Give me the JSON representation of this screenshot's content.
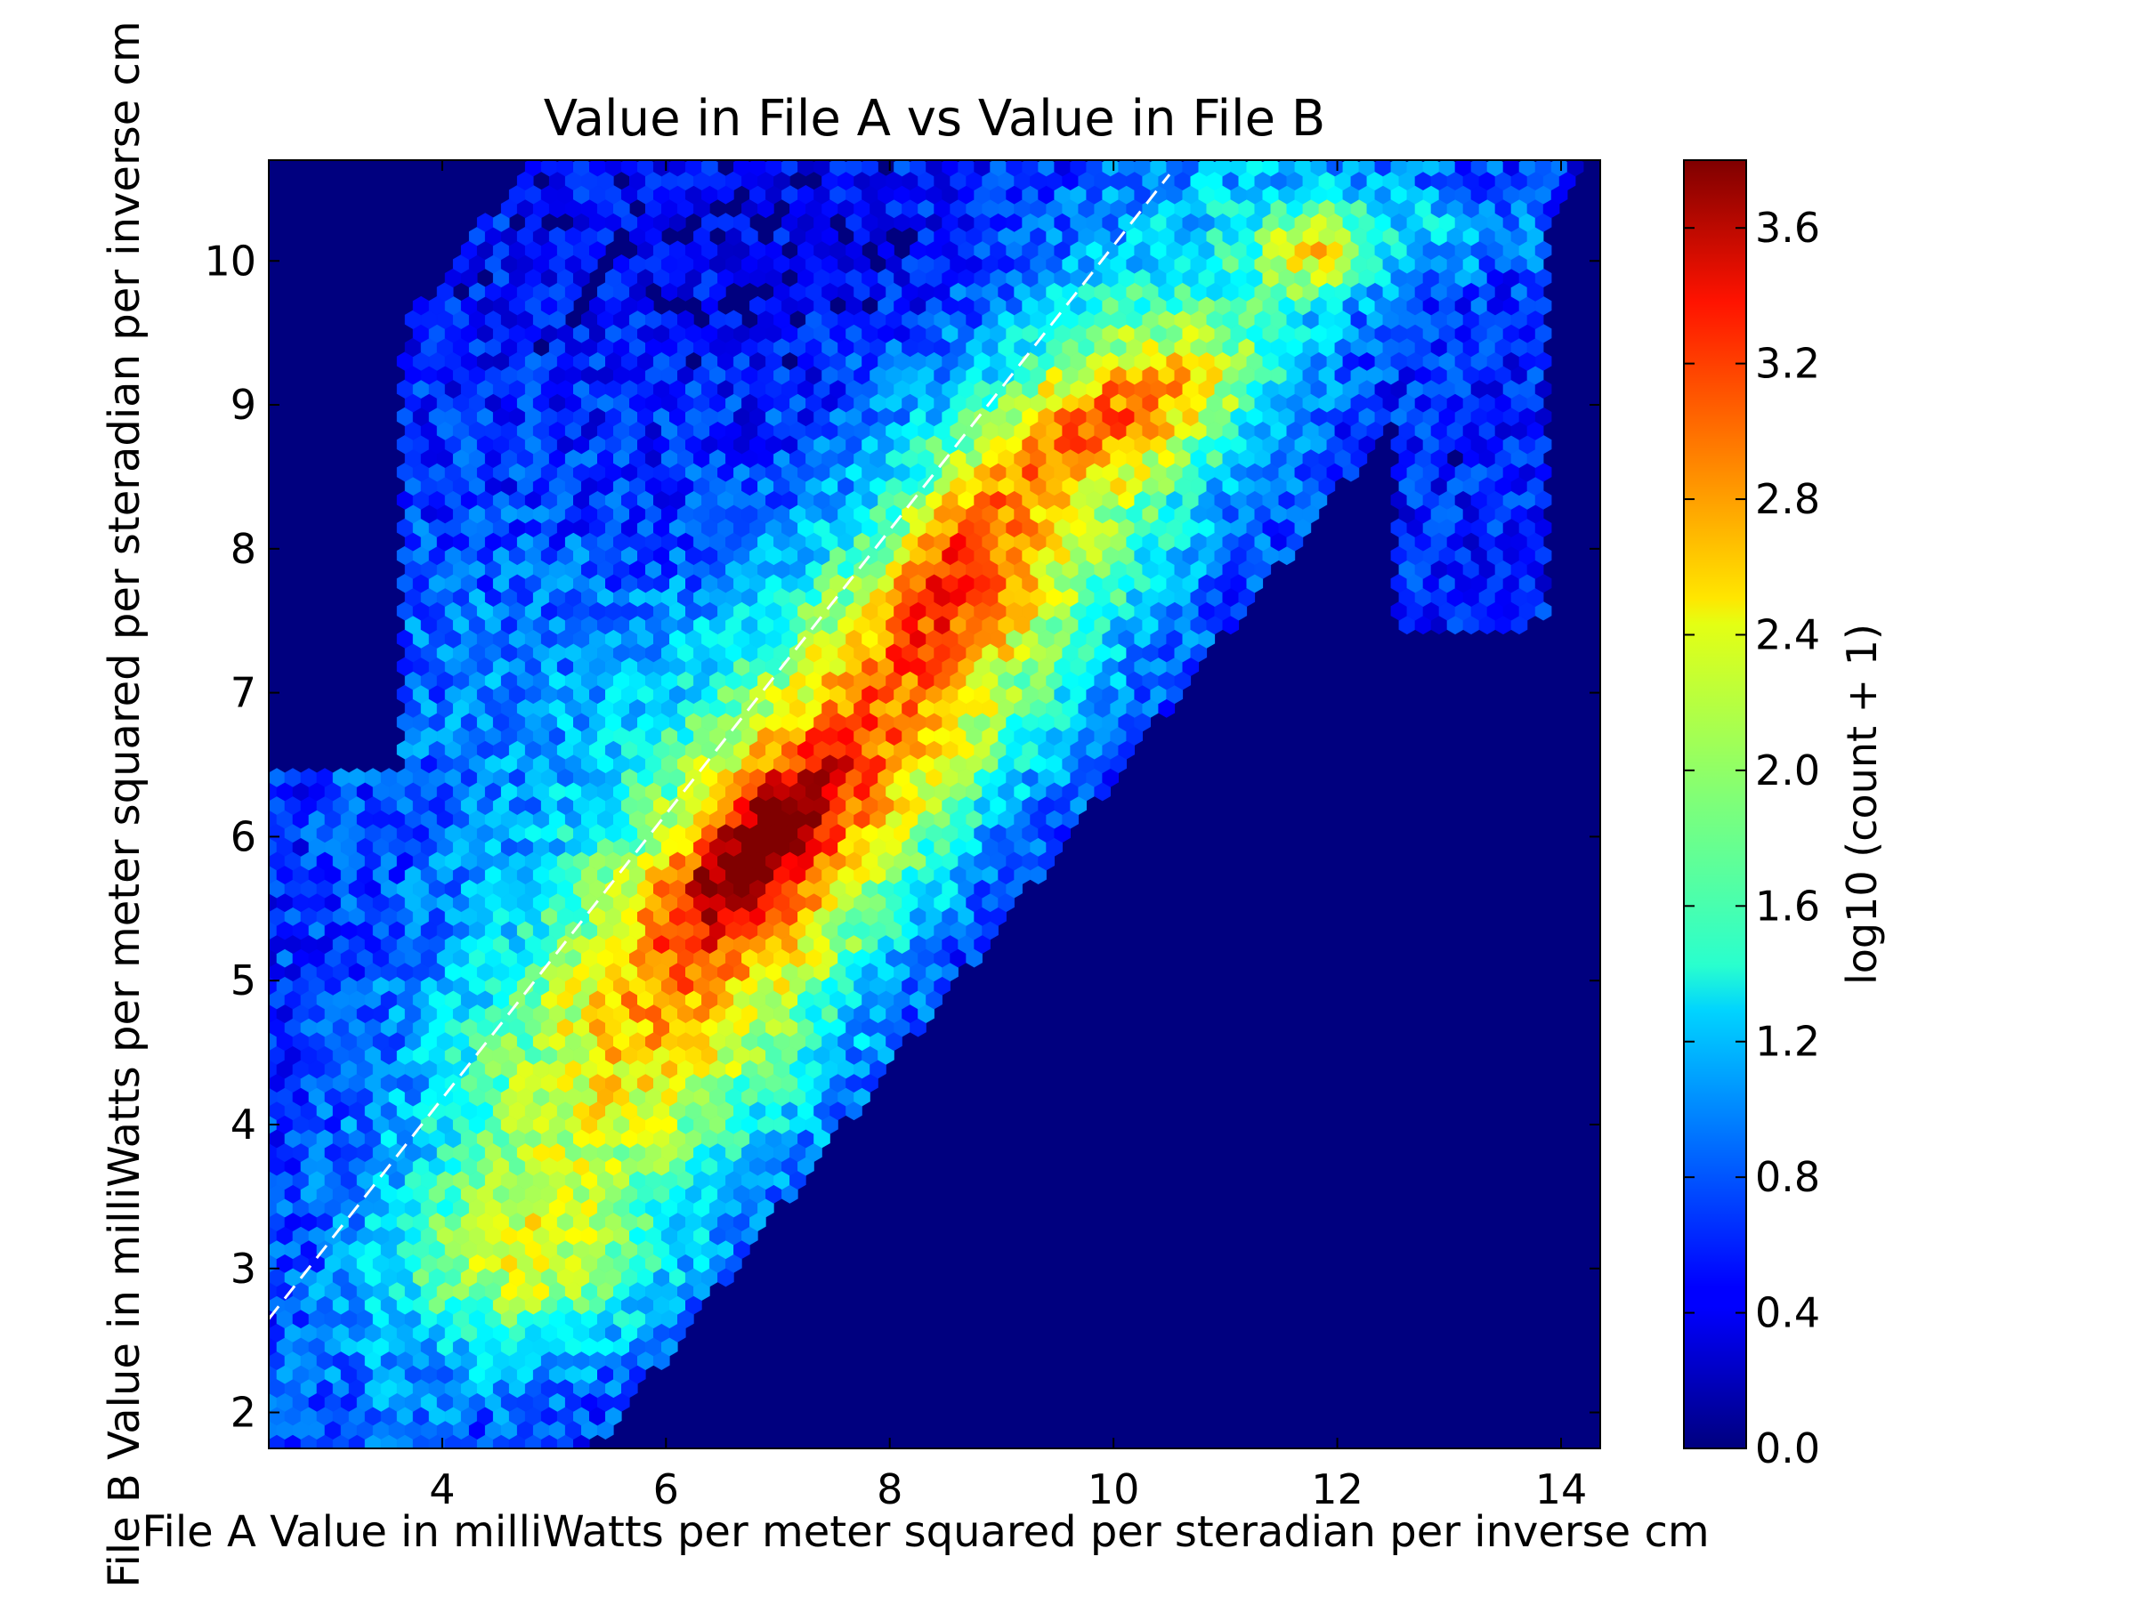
{
  "chart_data": {
    "type": "heatmap",
    "subtype": "hexbin",
    "title": "Value in File A vs Value in File B",
    "xlabel": "File A Value in milliWatts per meter squared per steradian per inverse cm",
    "ylabel": "File B Value in milliWatts per meter squared per steradian per inverse cm",
    "xlim": [
      2.45,
      14.35
    ],
    "ylim": [
      1.75,
      10.7
    ],
    "xticks": [
      4,
      6,
      8,
      10,
      12,
      14
    ],
    "xtick_labels": [
      "4",
      "6",
      "8",
      "10",
      "12",
      "14"
    ],
    "yticks": [
      2,
      3,
      4,
      5,
      6,
      7,
      8,
      9,
      10
    ],
    "ytick_labels": [
      "2",
      "3",
      "4",
      "5",
      "6",
      "7",
      "8",
      "9",
      "10"
    ],
    "grid": false,
    "background_color": "#00007f",
    "colormap": "jet",
    "colorbar": {
      "label": "log10 (count + 1)",
      "range": [
        0.0,
        3.8
      ],
      "ticks": [
        0.0,
        0.4,
        0.8,
        1.2,
        1.6,
        2.0,
        2.4,
        2.8,
        3.2,
        3.6
      ],
      "tick_labels": [
        "0.0",
        "0.4",
        "0.8",
        "1.2",
        "1.6",
        "2.0",
        "2.4",
        "2.8",
        "3.2",
        "3.6"
      ]
    },
    "reference_line": {
      "style": "dashed",
      "color": "#ffffff",
      "points": [
        [
          2.45,
          2.65
        ],
        [
          10.5,
          10.6
        ]
      ]
    },
    "density_peaks": [
      {
        "x": 6.8,
        "y": 5.9,
        "log_count": 3.75
      },
      {
        "x": 10.3,
        "y": 9.0,
        "log_count": 3.35
      },
      {
        "x": 11.8,
        "y": 10.05,
        "log_count": 3.3
      },
      {
        "x": 4.8,
        "y": 3.0,
        "log_count": 3.0
      },
      {
        "x": 8.7,
        "y": 7.9,
        "log_count": 3.1
      }
    ]
  }
}
